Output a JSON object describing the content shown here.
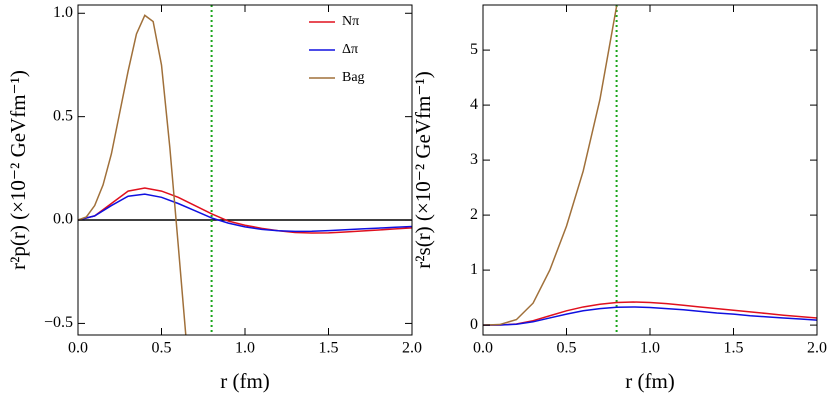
{
  "chart_data": [
    {
      "type": "line",
      "xlabel": "r (fm)",
      "ylabel": "r²p(r) (×10⁻² GeVfm⁻¹)",
      "x": [
        0,
        0.1,
        0.2,
        0.3,
        0.4,
        0.5,
        0.6,
        0.7,
        0.8,
        0.9,
        1.0,
        1.1,
        1.2,
        1.3,
        1.4,
        1.5,
        1.6,
        1.7,
        1.8,
        1.9,
        2.0
      ],
      "series": [
        {
          "name": "Nπ",
          "color": "#e0101e",
          "values": [
            0,
            0.02,
            0.08,
            0.14,
            0.155,
            0.14,
            0.11,
            0.07,
            0.03,
            -0.005,
            -0.025,
            -0.04,
            -0.052,
            -0.06,
            -0.063,
            -0.062,
            -0.058,
            -0.053,
            -0.048,
            -0.043,
            -0.038
          ]
        },
        {
          "name": "Δπ",
          "color": "#1010e0",
          "values": [
            0,
            0.02,
            0.07,
            0.115,
            0.125,
            0.11,
            0.08,
            0.045,
            0.01,
            -0.015,
            -0.033,
            -0.045,
            -0.052,
            -0.055,
            -0.054,
            -0.051,
            -0.047,
            -0.043,
            -0.039,
            -0.035,
            -0.031
          ]
        },
        {
          "name": "Bag",
          "color": "#a0703a",
          "x": [
            0,
            0.05,
            0.1,
            0.15,
            0.2,
            0.25,
            0.3,
            0.35,
            0.4,
            0.45,
            0.5,
            0.55,
            0.6,
            0.65
          ],
          "values": [
            0,
            0.015,
            0.07,
            0.17,
            0.32,
            0.52,
            0.72,
            0.9,
            0.99,
            0.96,
            0.75,
            0.35,
            -0.12,
            -0.6
          ]
        }
      ],
      "xlim": [
        0,
        2
      ],
      "ylim": [
        -0.556,
        1.04
      ],
      "xticks": [
        {
          "value": 0,
          "label": "0.0"
        },
        0.5,
        {
          "value": 1,
          "label": "1.0"
        },
        1.5,
        {
          "value": 2,
          "label": "2.0"
        }
      ],
      "yticks": [
        {
          "value": -0.5,
          "label": "−0.5"
        },
        {
          "value": 0,
          "label": "0.0"
        },
        0.5,
        {
          "value": 1,
          "label": "1.0"
        }
      ],
      "vline": 0.8,
      "vline_color": "#1aa51a",
      "hline": 0,
      "legend": "upper right"
    },
    {
      "type": "line",
      "xlabel": "r (fm)",
      "ylabel": "r²s(r) (×10⁻² GeVfm⁻¹)",
      "x": [
        0,
        0.1,
        0.2,
        0.3,
        0.4,
        0.5,
        0.6,
        0.7,
        0.8,
        0.9,
        1.0,
        1.1,
        1.2,
        1.3,
        1.4,
        1.5,
        1.6,
        1.7,
        1.8,
        1.9,
        2.0
      ],
      "series": [
        {
          "name": "Nπ",
          "color": "#e0101e",
          "values": [
            0,
            0.001,
            0.02,
            0.08,
            0.17,
            0.26,
            0.33,
            0.38,
            0.41,
            0.42,
            0.41,
            0.39,
            0.36,
            0.33,
            0.3,
            0.27,
            0.24,
            0.21,
            0.18,
            0.155,
            0.13
          ]
        },
        {
          "name": "Δπ",
          "color": "#1010e0",
          "values": [
            0,
            0.001,
            0.015,
            0.06,
            0.13,
            0.2,
            0.26,
            0.3,
            0.325,
            0.33,
            0.32,
            0.3,
            0.28,
            0.25,
            0.22,
            0.2,
            0.17,
            0.15,
            0.13,
            0.11,
            0.09
          ]
        },
        {
          "name": "Bag",
          "color": "#a0703a",
          "x": [
            0,
            0.1,
            0.2,
            0.3,
            0.4,
            0.5,
            0.6,
            0.7,
            0.8
          ],
          "values": [
            0,
            0.01,
            0.1,
            0.4,
            1.0,
            1.8,
            2.8,
            4.1,
            5.8
          ]
        }
      ],
      "xlim": [
        0,
        2
      ],
      "ylim": [
        -0.18,
        5.82
      ],
      "xticks": [
        {
          "value": 0,
          "label": "0.0"
        },
        0.5,
        {
          "value": 1,
          "label": "1.0"
        },
        1.5,
        {
          "value": 2,
          "label": "2.0"
        }
      ],
      "yticks": [
        0,
        1,
        2,
        3,
        4,
        5
      ],
      "vline": 0.8,
      "vline_color": "#1aa51a"
    }
  ]
}
